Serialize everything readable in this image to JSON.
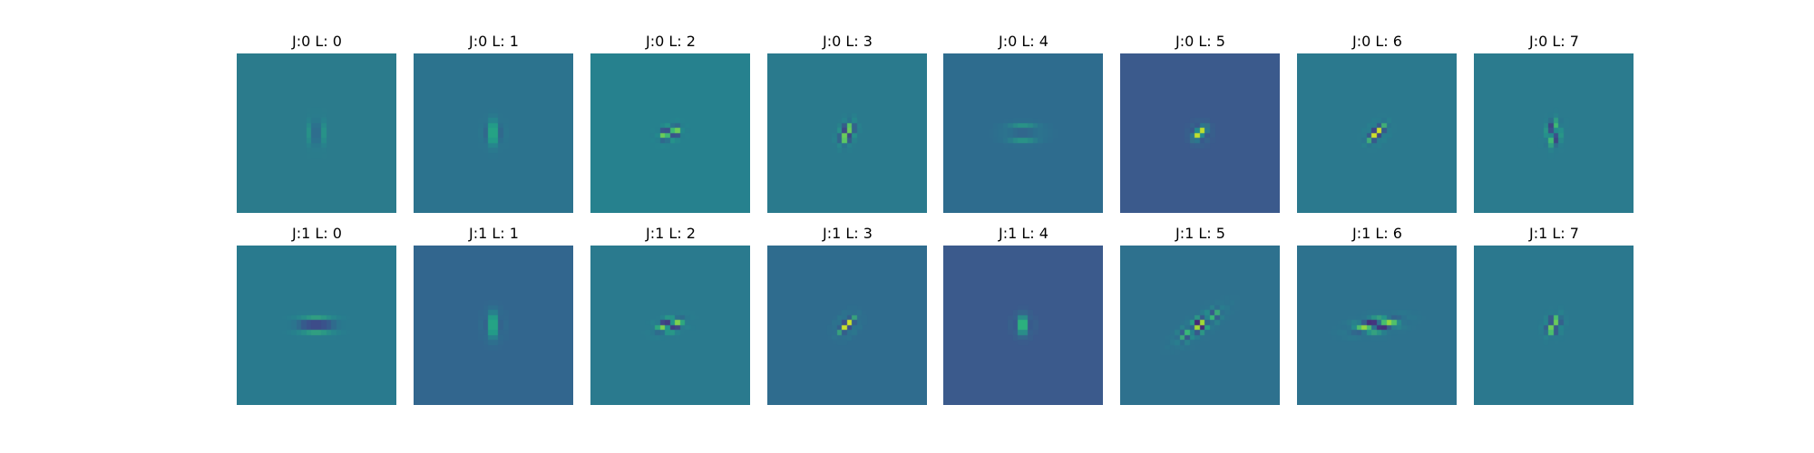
{
  "figure": {
    "colormap": "viridis",
    "background_color": "#ffffff",
    "rows": [
      {
        "panels": [
          {
            "title": "J:0 L: 0",
            "background": "#2b7b8c",
            "filter_angle_deg": 90,
            "filter_elongation": 1.9,
            "filter_cycles": 2.5,
            "filter_level": 1.0
          },
          {
            "title": "J:0 L: 1",
            "background": "#2c738e",
            "filter_angle_deg": 90,
            "filter_elongation": 1.7,
            "filter_cycles": 1.8,
            "filter_level": 1.0
          },
          {
            "title": "J:0 L: 2",
            "background": "#26818e",
            "filter_angle_deg": 160,
            "filter_elongation": 1.6,
            "filter_cycles": 2.4,
            "filter_level": 0.9
          },
          {
            "title": "J:0 L: 3",
            "background": "#2a7a8d",
            "filter_angle_deg": 115,
            "filter_elongation": 1.7,
            "filter_cycles": 2.4,
            "filter_level": 0.95
          },
          {
            "title": "J:0 L: 4",
            "background": "#2e6c8e",
            "filter_angle_deg": 180,
            "filter_elongation": 2.3,
            "filter_cycles": 2.6,
            "filter_level": 1.0
          },
          {
            "title": "J:0 L: 5",
            "background": "#3b5a8c",
            "filter_angle_deg": 135,
            "filter_elongation": 1.1,
            "filter_cycles": 1.5,
            "filter_level": 1.0
          },
          {
            "title": "J:0 L: 6",
            "background": "#2b798e",
            "filter_angle_deg": 135,
            "filter_elongation": 1.6,
            "filter_cycles": 2.3,
            "filter_level": 0.95
          },
          {
            "title": "J:0 L: 7",
            "background": "#2b7b8e",
            "filter_angle_deg": 100,
            "filter_elongation": 1.7,
            "filter_cycles": 2.6,
            "filter_level": 0.95
          }
        ]
      },
      {
        "panels": [
          {
            "title": "J:1 L: 0",
            "background": "#297a8e",
            "filter_angle_deg": 180,
            "filter_elongation": 2.8,
            "filter_cycles": 3.0,
            "filter_level": 1.0
          },
          {
            "title": "J:1 L: 1",
            "background": "#32668e",
            "filter_angle_deg": 90,
            "filter_elongation": 1.7,
            "filter_cycles": 1.8,
            "filter_level": 1.0
          },
          {
            "title": "J:1 L: 2",
            "background": "#2a7a8e",
            "filter_angle_deg": 165,
            "filter_elongation": 2.0,
            "filter_cycles": 2.8,
            "filter_level": 0.9
          },
          {
            "title": "J:1 L: 3",
            "background": "#2f6c8e",
            "filter_angle_deg": 135,
            "filter_elongation": 1.5,
            "filter_cycles": 2.2,
            "filter_level": 0.95
          },
          {
            "title": "J:1 L: 4",
            "background": "#3b5a8c",
            "filter_angle_deg": 90,
            "filter_elongation": 1.2,
            "filter_cycles": 1.6,
            "filter_level": 1.0
          },
          {
            "title": "J:1 L: 5",
            "background": "#2e718e",
            "filter_angle_deg": 145,
            "filter_elongation": 3.2,
            "filter_cycles": 3.0,
            "filter_level": 0.9
          },
          {
            "title": "J:1 L: 6",
            "background": "#2d728e",
            "filter_angle_deg": 170,
            "filter_elongation": 3.2,
            "filter_cycles": 3.0,
            "filter_level": 0.95
          },
          {
            "title": "J:1 L: 7",
            "background": "#2b788e",
            "filter_angle_deg": 115,
            "filter_elongation": 1.5,
            "filter_cycles": 2.2,
            "filter_level": 0.9
          }
        ]
      }
    ]
  }
}
